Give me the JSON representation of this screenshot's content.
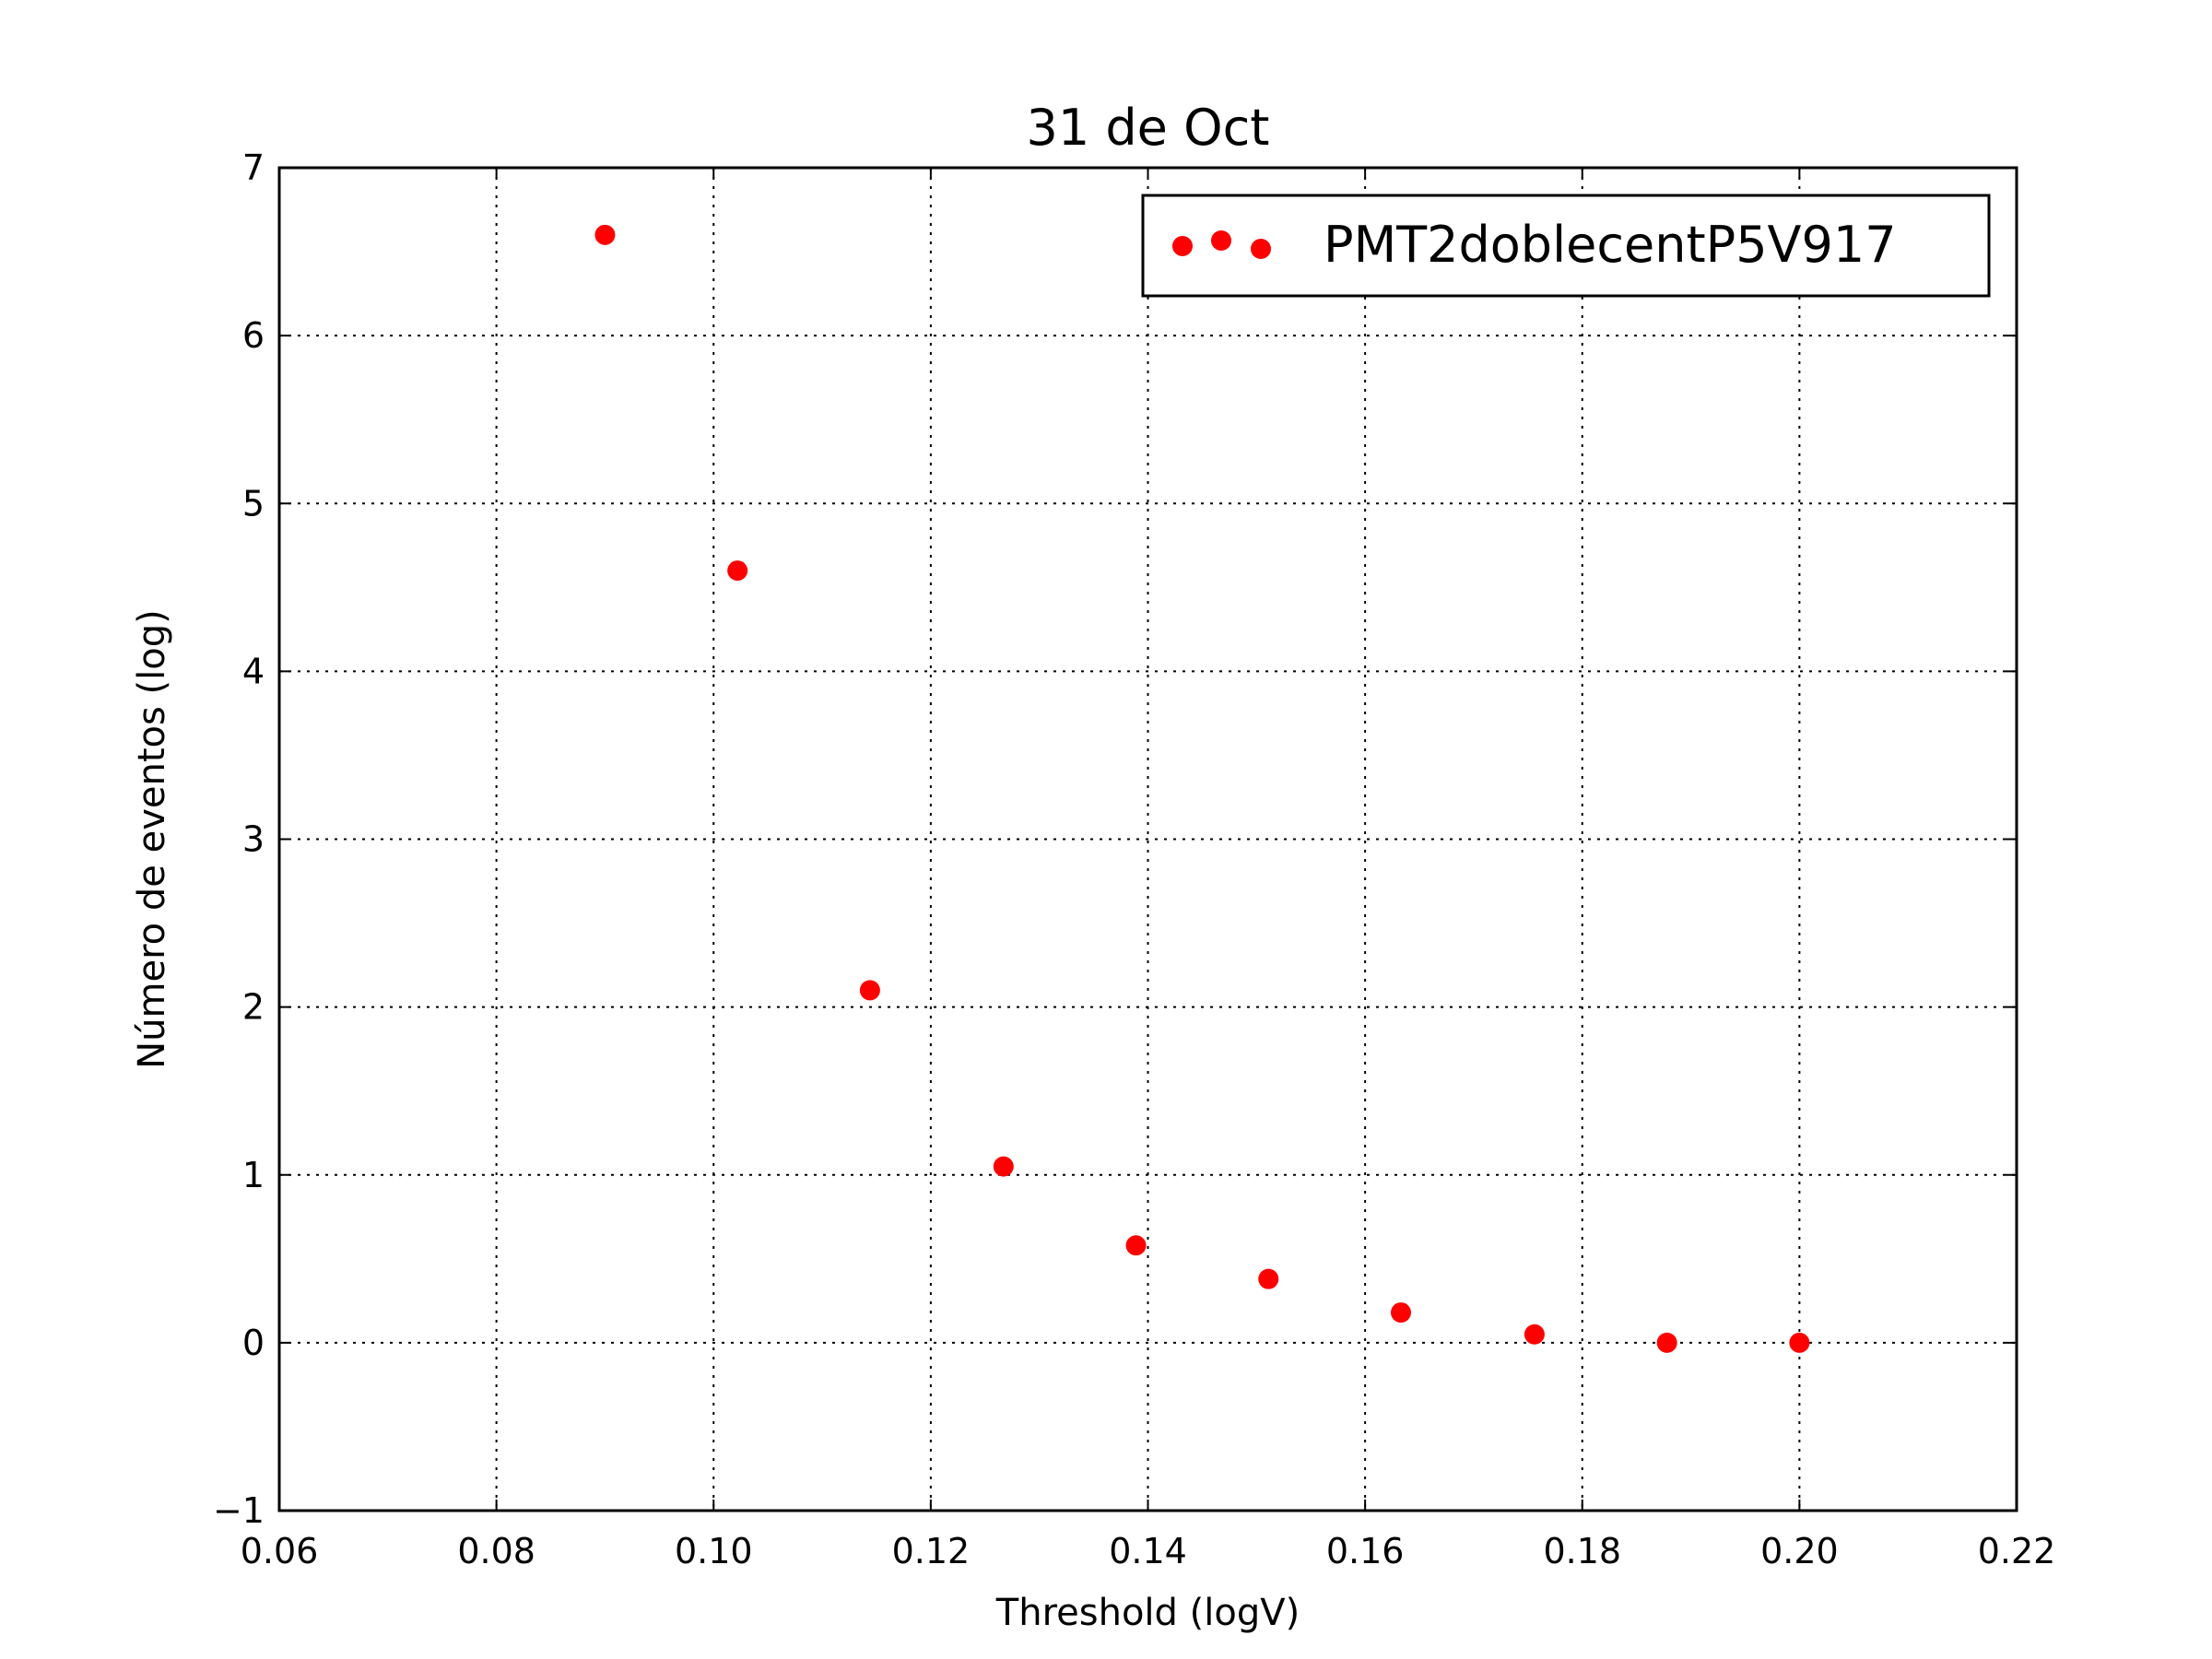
{
  "chart_data": {
    "type": "scatter",
    "title": "31 de Oct",
    "xlabel": "Threshold (logV)",
    "ylabel": "Número de eventos (log)",
    "xlim": [
      0.06,
      0.22
    ],
    "ylim": [
      -1,
      7
    ],
    "xticks": [
      "0.06",
      "0.08",
      "0.10",
      "0.12",
      "0.14",
      "0.16",
      "0.18",
      "0.20",
      "0.22"
    ],
    "yticks": [
      "−1",
      "0",
      "1",
      "2",
      "3",
      "4",
      "5",
      "6",
      "7"
    ],
    "grid": true,
    "legend_position": "top-right",
    "series": [
      {
        "name": "PMT2doblecentP5V917",
        "color": "#ff0000",
        "marker": "circle",
        "x": [
          0.09,
          0.1022,
          0.1144,
          0.1267,
          0.1389,
          0.1511,
          0.1633,
          0.1756,
          0.1878,
          0.2
        ],
        "y": [
          6.6,
          4.6,
          2.1,
          1.05,
          0.58,
          0.38,
          0.18,
          0.05,
          0.0,
          0.0
        ]
      }
    ]
  }
}
